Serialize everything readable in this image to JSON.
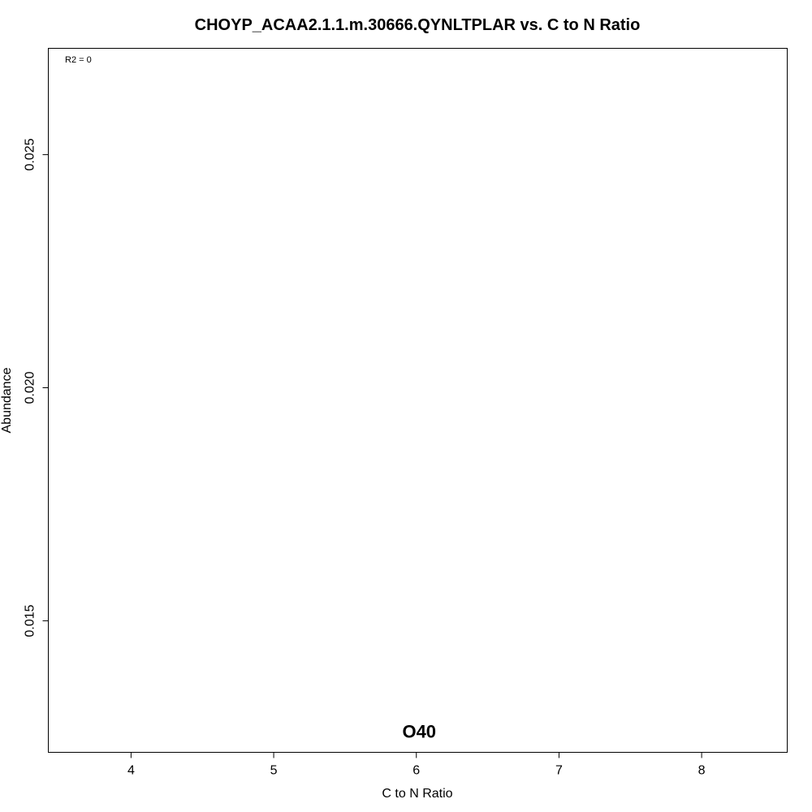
{
  "chart_data": {
    "type": "scatter",
    "title": "CHOYP_ACAA2.1.1.m.30666.QYNLTPLAR vs. C to N Ratio",
    "xlabel": "C to N Ratio",
    "ylabel": "Abundance",
    "xlim": [
      3.42,
      8.6
    ],
    "ylim": [
      0.01218,
      0.02728
    ],
    "xticks": [
      4,
      5,
      6,
      7,
      8
    ],
    "xtick_labels": [
      "4",
      "5",
      "6",
      "7",
      "8"
    ],
    "yticks": [
      0.015,
      0.02,
      0.025
    ],
    "ytick_labels": [
      "0.015",
      "0.020",
      "0.025"
    ],
    "grid": false,
    "annotations": [
      {
        "text": "R2 = 0",
        "position": "top-left"
      }
    ],
    "points": [
      {
        "label": "O40",
        "x": 6.02,
        "y": 0.01262
      }
    ],
    "colors": {
      "text": "#000000",
      "axis": "#000000",
      "background": "#ffffff"
    }
  }
}
